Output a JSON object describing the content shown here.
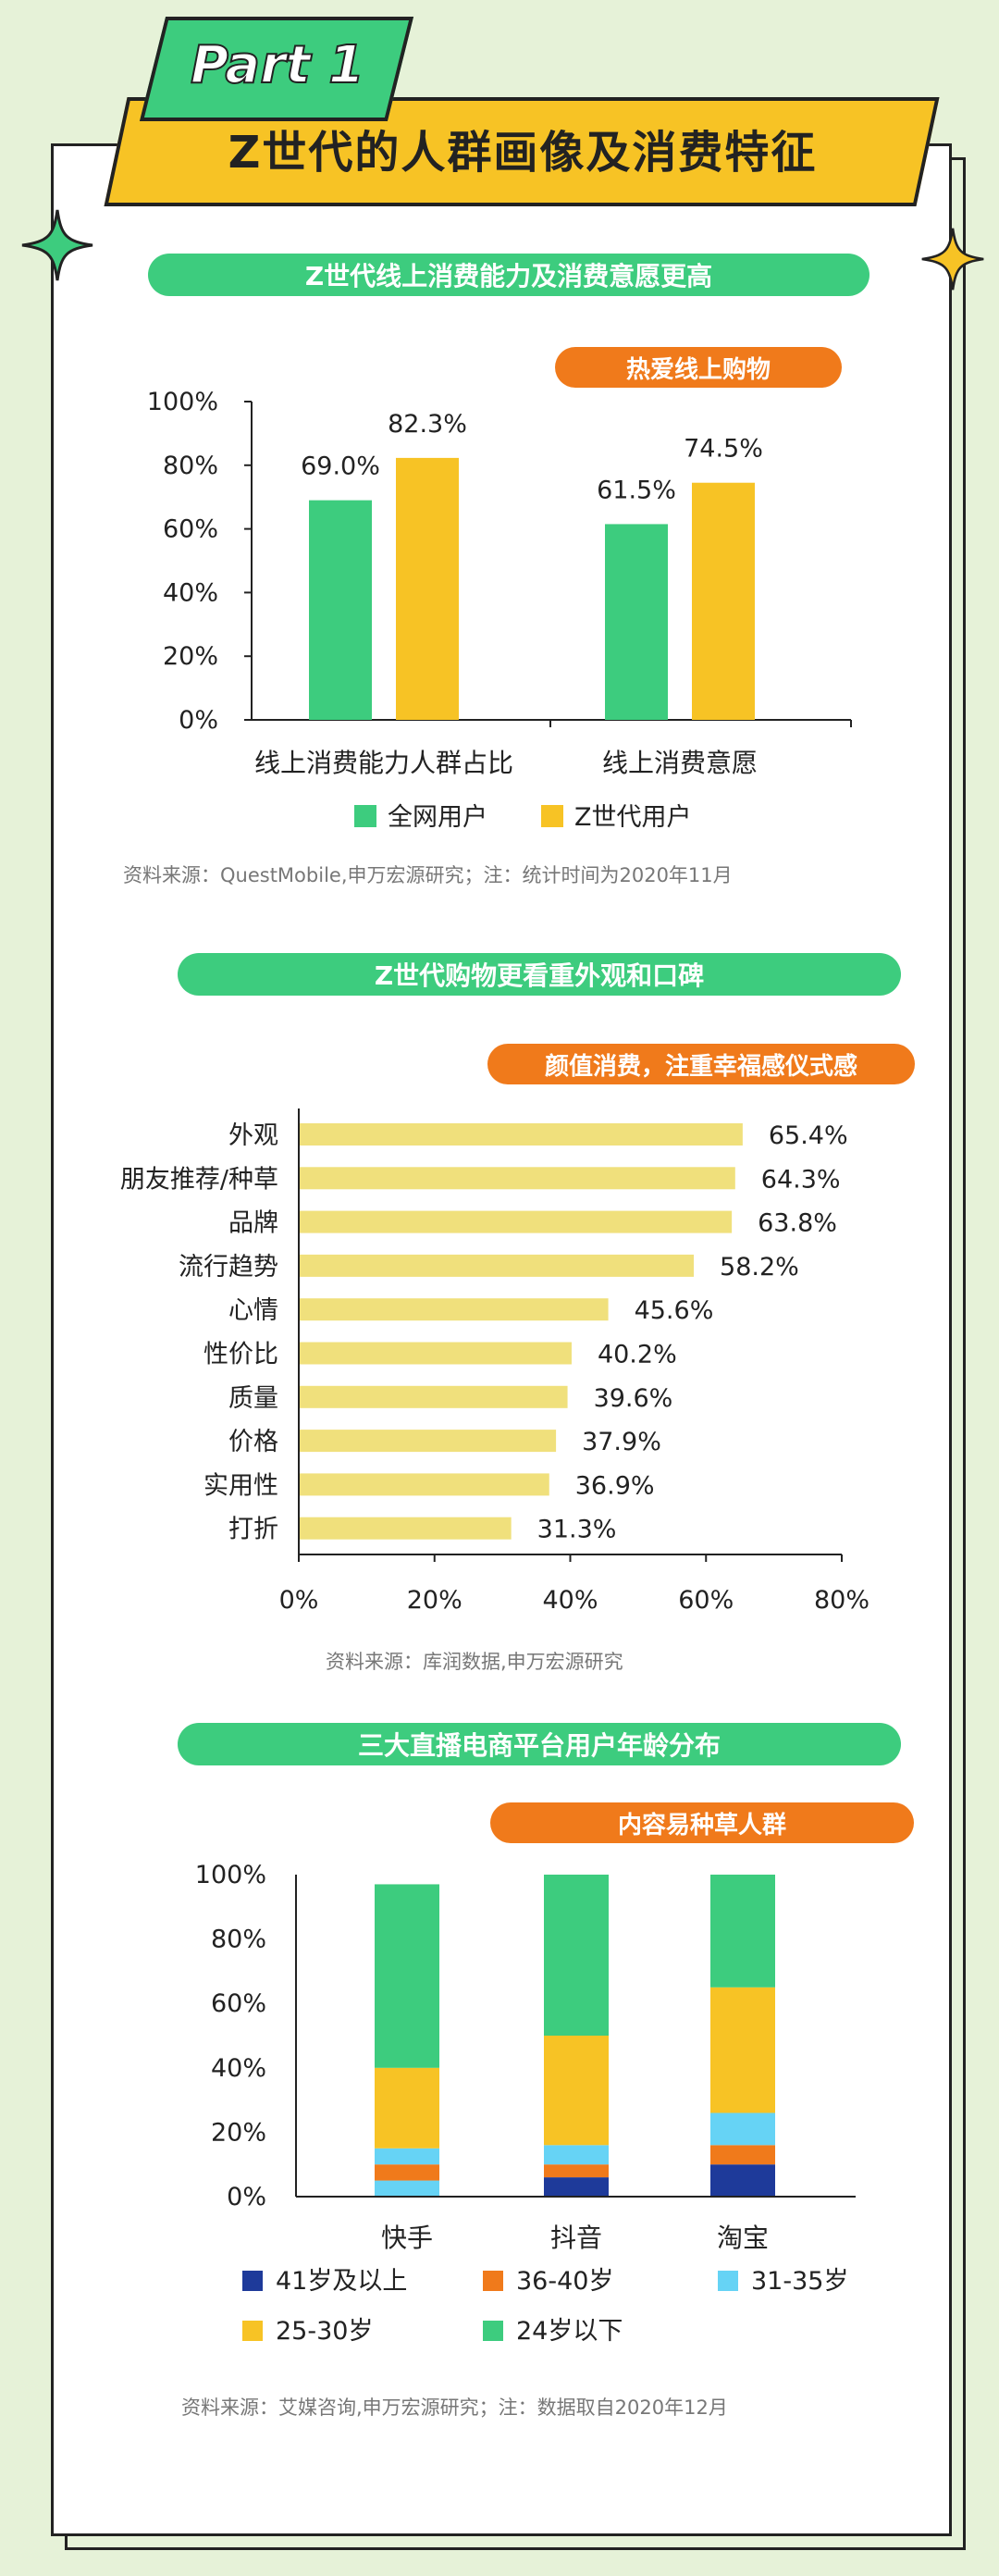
{
  "header": {
    "part_label": "Part 1",
    "title": "Z世代的人群画像及消费特征"
  },
  "colors": {
    "green": "#3dcc7e",
    "yellow": "#f7c325",
    "orange": "#f07a1b",
    "light_yellow": "#f0e07c",
    "dark_blue": "#1e3a9a",
    "light_blue": "#66d3f5"
  },
  "section1": {
    "heading": "Z世代线上消费能力及消费意愿更高",
    "tag": "热爱线上购物",
    "source": "资料来源：QuestMobile,申万宏源研究；注：统计时间为2020年11月"
  },
  "section2": {
    "heading": "Z世代购物更看重外观和口碑",
    "tag": "颜值消费，注重幸福感仪式感",
    "source": "资料来源：库润数据,申万宏源研究"
  },
  "section3": {
    "heading": "三大直播电商平台用户年龄分布",
    "tag": "内容易种草人群",
    "source": "资料来源：艾媒咨询,申万宏源研究；注：数据取自2020年12月"
  },
  "chart_data": [
    {
      "type": "bar",
      "categories": [
        "线上消费能力人群占比",
        "线上消费意愿"
      ],
      "series": [
        {
          "name": "全网用户",
          "values": [
            69.0,
            61.5
          ],
          "color": "#3dcc7e"
        },
        {
          "name": "Z世代用户",
          "values": [
            82.3,
            74.5
          ],
          "color": "#f7c325"
        }
      ],
      "value_labels": [
        [
          "69.0%",
          "61.5%"
        ],
        [
          "82.3%",
          "74.5%"
        ]
      ],
      "ylim": [
        0,
        100
      ],
      "yticks": [
        "0%",
        "20%",
        "40%",
        "60%",
        "80%",
        "100%"
      ],
      "legend": "bottom"
    },
    {
      "type": "bar",
      "orientation": "horizontal",
      "categories": [
        "外观",
        "朋友推荐/种草",
        "品牌",
        "流行趋势",
        "心情",
        "性价比",
        "质量",
        "价格",
        "实用性",
        "打折"
      ],
      "values": [
        65.4,
        64.3,
        63.8,
        58.2,
        45.6,
        40.2,
        39.6,
        37.9,
        36.9,
        31.3
      ],
      "value_labels": [
        "65.4%",
        "64.3%",
        "63.8%",
        "58.2%",
        "45.6%",
        "40.2%",
        "39.6%",
        "37.9%",
        "36.9%",
        "31.3%"
      ],
      "xlim": [
        0,
        80
      ],
      "xticks": [
        "0%",
        "20%",
        "40%",
        "60%",
        "80%"
      ],
      "color": "#f0e07c"
    },
    {
      "type": "bar",
      "stacked": true,
      "categories": [
        "快手",
        "抖音",
        "淘宝"
      ],
      "series": [
        {
          "name": "41岁及以上",
          "values": [
            0,
            6,
            10
          ],
          "color": "#1e3a9a"
        },
        {
          "name": "36-40岁",
          "values": [
            5,
            4,
            6
          ],
          "color": "#f07a1b"
        },
        {
          "name": "31-35岁",
          "values": [
            5,
            6,
            10
          ],
          "color": "#66d3f5"
        },
        {
          "name": "25-30岁",
          "values": [
            25,
            34,
            39
          ],
          "color": "#f7c325"
        },
        {
          "name": "24岁以下",
          "values": [
            57,
            50,
            35
          ],
          "color": "#3dcc7e"
        }
      ],
      "bottom_segment": {
        "category": "快手",
        "value": 5,
        "color": "#66d3f5"
      },
      "ylim": [
        0,
        100
      ],
      "yticks": [
        "0%",
        "20%",
        "40%",
        "60%",
        "80%",
        "100%"
      ],
      "legend": "bottom"
    }
  ]
}
